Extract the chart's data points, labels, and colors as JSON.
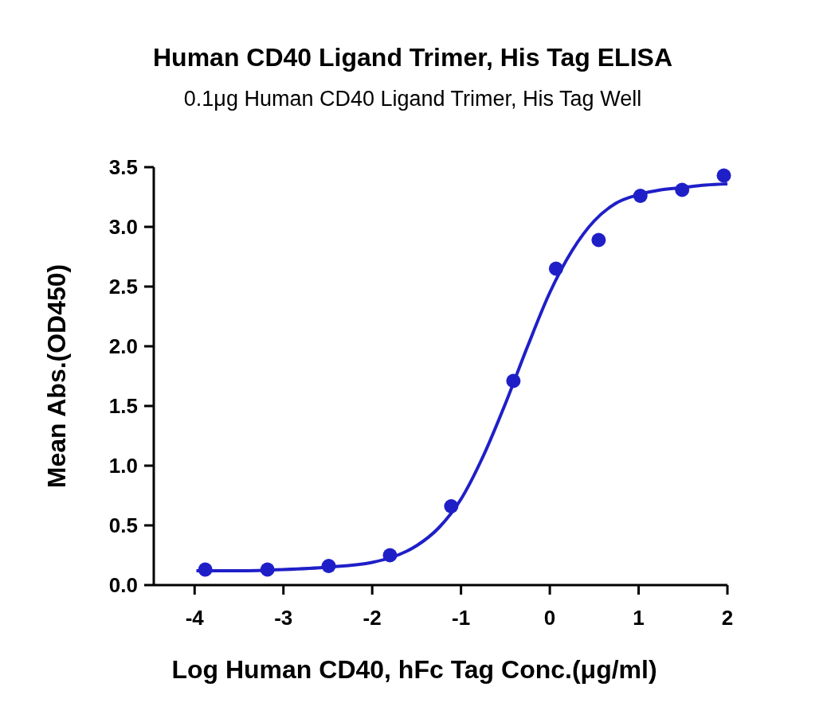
{
  "chart_data": {
    "type": "scatter",
    "title": "Human CD40 Ligand Trimer, His Tag ELISA",
    "subtitle": "0.1μg Human CD40 Ligand Trimer, His Tag Well",
    "xlabel": "Log Human CD40, hFc Tag Conc.(μg/ml)",
    "ylabel": "Mean Abs.(OD450)",
    "xlim": [
      -4.46,
      2
    ],
    "xticks": [
      -4,
      -3,
      -2,
      -1,
      0,
      1,
      2
    ],
    "ylim": [
      0,
      3.5
    ],
    "yticks": [
      {
        "value": 0,
        "label": "0.0"
      },
      {
        "value": 0.5,
        "label": "0.5"
      },
      {
        "value": 1,
        "label": "1.0"
      },
      {
        "value": 1.5,
        "label": "1.5"
      },
      {
        "value": 2,
        "label": "2.0"
      },
      {
        "value": 2.5,
        "label": "2.5"
      },
      {
        "value": 3,
        "label": "3.0"
      },
      {
        "value": 3.5,
        "label": "3.5"
      }
    ],
    "grid": false,
    "line_style": "solid",
    "series": [
      {
        "marker": "circle",
        "color": "#1f1fc8",
        "x": [
          -3.88,
          -3.18,
          -2.49,
          -1.8,
          -1.11,
          -0.41,
          0.07,
          0.55,
          1.02,
          1.49,
          1.96
        ],
        "values": [
          0.13,
          0.13,
          0.16,
          0.25,
          0.66,
          1.71,
          2.65,
          2.89,
          3.26,
          3.31,
          3.43
        ]
      },
      {
        "type": "line",
        "color": "#1f1fc8",
        "x": [
          -3.98,
          -3.5,
          -3,
          -2.5,
          -2,
          -1.75,
          -1.5,
          -1.25,
          -1,
          -0.75,
          -0.5,
          -0.25,
          0,
          0.25,
          0.5,
          0.75,
          1,
          1.25,
          1.5,
          1.75,
          2
        ],
        "values": [
          0.12,
          0.12,
          0.13,
          0.15,
          0.19,
          0.24,
          0.33,
          0.48,
          0.72,
          1.08,
          1.52,
          2.0,
          2.45,
          2.8,
          3.05,
          3.2,
          3.27,
          3.31,
          3.33,
          3.35,
          3.36
        ]
      }
    ]
  }
}
